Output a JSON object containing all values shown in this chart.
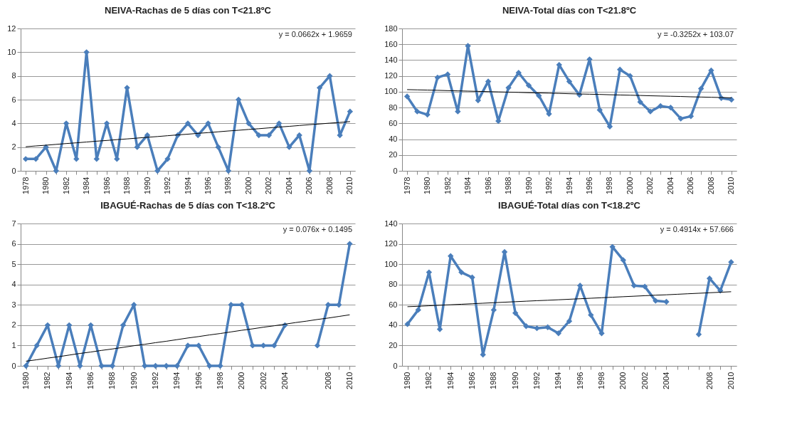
{
  "chart_data": [
    {
      "type": "line",
      "title": "NEIVA-Rachas de 5 días con T<21.8ºC",
      "categories": [
        "1978",
        null,
        "1980",
        null,
        "1982",
        null,
        "1984",
        null,
        "1986",
        null,
        "1988",
        null,
        "1990",
        null,
        "1992",
        null,
        "1994",
        null,
        "1996",
        null,
        "1998",
        null,
        "2000",
        null,
        "2002",
        null,
        "2004",
        null,
        "2006",
        null,
        "2008",
        null,
        "2010"
      ],
      "ylim": [
        0,
        12
      ],
      "yticks": [
        0,
        2,
        4,
        6,
        8,
        10,
        12
      ],
      "grid": "y",
      "marker": "diamond",
      "annotations": [
        "y = 0.0662x + 1.9659"
      ],
      "series": [
        {
          "color": "#4a7ebb",
          "values": [
            1,
            1,
            2,
            0,
            4,
            1,
            10,
            1,
            4,
            1,
            7,
            2,
            3,
            0,
            1,
            3,
            4,
            3,
            4,
            2,
            0,
            6,
            4,
            3,
            3,
            4,
            2,
            3,
            0,
            7,
            8,
            3,
            5
          ]
        },
        {
          "type": "line",
          "marker": "none",
          "color": "#000000",
          "values": [
            2.03,
            2.1,
            2.16,
            2.23,
            2.3,
            2.36,
            2.43,
            2.5,
            2.56,
            2.63,
            2.69,
            2.76,
            2.83,
            2.89,
            2.96,
            3.03,
            3.09,
            3.16,
            3.22,
            3.29,
            3.36,
            3.42,
            3.49,
            3.55,
            3.62,
            3.69,
            3.75,
            3.82,
            3.89,
            3.95,
            4.02,
            4.08,
            4.15
          ]
        }
      ]
    },
    {
      "type": "line",
      "title": "NEIVA-Total días con T<21.8ºC",
      "categories": [
        "1978",
        null,
        "1980",
        null,
        "1982",
        null,
        "1984",
        null,
        "1986",
        null,
        "1988",
        null,
        "1990",
        null,
        "1992",
        null,
        "1994",
        null,
        "1996",
        null,
        "1998",
        null,
        "2000",
        null,
        "2002",
        null,
        "2004",
        null,
        "2006",
        null,
        "2008",
        null,
        "2010"
      ],
      "ylim": [
        0,
        180
      ],
      "yticks": [
        0,
        20,
        40,
        60,
        80,
        100,
        120,
        140,
        160,
        180
      ],
      "grid": "y",
      "marker": "diamond",
      "annotations": [
        "y = -0.3252x + 103.07"
      ],
      "series": [
        {
          "color": "#4a7ebb",
          "values": [
            94,
            75,
            71,
            118,
            122,
            75,
            158,
            89,
            113,
            63,
            105,
            124,
            108,
            95,
            72,
            134,
            113,
            96,
            141,
            77,
            56,
            128,
            120,
            87,
            75,
            82,
            80,
            66,
            69,
            104,
            127,
            92,
            90
          ]
        },
        {
          "type": "line",
          "marker": "none",
          "color": "#000000",
          "values": [
            102.7,
            102.4,
            102.1,
            101.8,
            101.4,
            101.1,
            100.8,
            100.5,
            100.1,
            99.8,
            99.5,
            99.2,
            98.8,
            98.5,
            98.2,
            97.9,
            97.5,
            97.2,
            96.9,
            96.6,
            96.2,
            95.9,
            95.6,
            95.3,
            94.9,
            94.6,
            94.3,
            94.0,
            93.6,
            93.3,
            93.0,
            92.7,
            92.3
          ]
        }
      ]
    },
    {
      "type": "line",
      "title": "IBAGUÉ-Rachas de 5 días con T<18.2ºC",
      "categories": [
        "1980",
        null,
        "1982",
        null,
        "1984",
        null,
        "1986",
        null,
        "1988",
        null,
        "1990",
        null,
        "1992",
        null,
        "1994",
        null,
        "1996",
        null,
        "1998",
        null,
        "2000",
        null,
        "2002",
        null,
        "2004",
        null,
        null,
        null,
        "2008",
        null,
        "2010"
      ],
      "ylim": [
        0,
        7
      ],
      "yticks": [
        0,
        1,
        2,
        3,
        4,
        5,
        6,
        7
      ],
      "grid": "y",
      "marker": "diamond",
      "annotations": [
        "y = 0.076x + 0.1495"
      ],
      "series": [
        {
          "color": "#4a7ebb",
          "values": [
            0,
            1,
            2,
            0,
            2,
            0,
            2,
            0,
            0,
            2,
            3,
            0,
            0,
            0,
            0,
            1,
            1,
            0,
            0,
            3,
            3,
            1,
            1,
            1,
            2,
            null,
            null,
            1,
            3,
            3,
            6
          ]
        },
        {
          "type": "line",
          "marker": "none",
          "color": "#000000",
          "values": [
            0.23,
            0.3,
            0.38,
            0.45,
            0.53,
            0.61,
            0.68,
            0.76,
            0.83,
            0.91,
            0.99,
            1.06,
            1.14,
            1.21,
            1.29,
            1.37,
            1.44,
            1.52,
            1.59,
            1.67,
            1.75,
            1.82,
            1.9,
            1.97,
            2.05,
            2.13,
            2.2,
            2.28,
            2.35,
            2.43,
            2.51
          ]
        }
      ]
    },
    {
      "type": "line",
      "title": "IBAGUÉ-Total días con T<18.2ºC",
      "categories": [
        "1980",
        null,
        "1982",
        null,
        "1984",
        null,
        "1986",
        null,
        "1988",
        null,
        "1990",
        null,
        "1992",
        null,
        "1994",
        null,
        "1996",
        null,
        "1998",
        null,
        "2000",
        null,
        "2002",
        null,
        "2004",
        null,
        null,
        null,
        "2008",
        null,
        "2010"
      ],
      "ylim": [
        0,
        140
      ],
      "yticks": [
        0,
        20,
        40,
        60,
        80,
        100,
        120,
        140
      ],
      "grid": "y",
      "marker": "diamond",
      "annotations": [
        "y = 0.4914x + 57.666"
      ],
      "series": [
        {
          "color": "#4a7ebb",
          "values": [
            41,
            55,
            92,
            36,
            108,
            92,
            87,
            11,
            55,
            112,
            52,
            39,
            37,
            38,
            32,
            44,
            79,
            50,
            32,
            117,
            104,
            79,
            78,
            64,
            63,
            null,
            null,
            31,
            86,
            74,
            102
          ]
        },
        {
          "type": "line",
          "marker": "none",
          "color": "#000000",
          "values": [
            58.2,
            58.6,
            59.1,
            59.6,
            60.1,
            60.6,
            61.1,
            61.6,
            62.1,
            62.6,
            63.1,
            63.6,
            64.1,
            64.5,
            65.0,
            65.5,
            66.0,
            66.5,
            67.0,
            67.5,
            68.0,
            68.5,
            69.0,
            69.5,
            69.9,
            70.4,
            70.9,
            71.4,
            71.9,
            72.4,
            72.9
          ]
        }
      ]
    }
  ]
}
